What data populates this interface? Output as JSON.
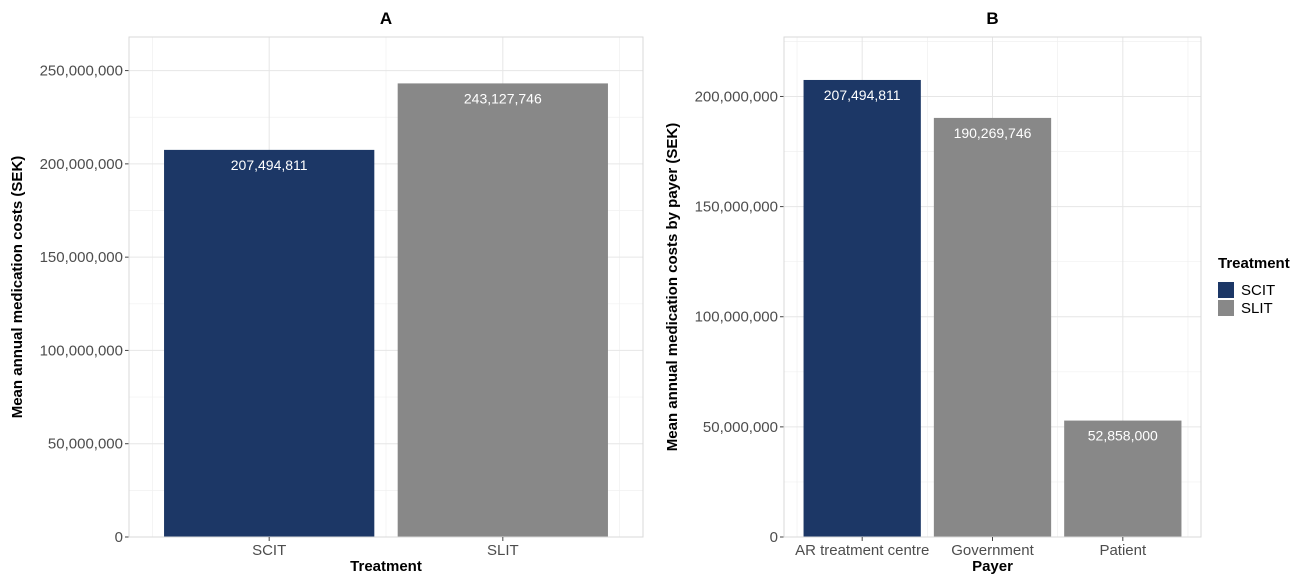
{
  "chart_data": [
    {
      "type": "bar",
      "title": "A",
      "xlabel": "Treatment",
      "ylabel": "Mean annual medication costs (SEK)",
      "categories": [
        "SCIT",
        "SLIT"
      ],
      "values": [
        207494811,
        243127746
      ],
      "bar_treatment": [
        "SCIT",
        "SLIT"
      ],
      "data_labels": [
        "207,494,811",
        "243,127,746"
      ],
      "ylim": [
        0,
        268000000
      ],
      "y_ticks": [
        0,
        50000000,
        100000000,
        150000000,
        200000000,
        250000000
      ],
      "y_tick_labels": [
        "0",
        "50,000,000",
        "100,000,000",
        "150,000,000",
        "200,000,000",
        "250,000,000"
      ],
      "grid": true
    },
    {
      "type": "bar",
      "title": "B",
      "xlabel": "Payer",
      "ylabel": "Mean annual medication costs by payer (SEK)",
      "categories": [
        "AR treatment centre",
        "Government",
        "Patient"
      ],
      "values": [
        207494811,
        190269746,
        52858000
      ],
      "bar_treatment": [
        "SCIT",
        "SLIT",
        "SLIT"
      ],
      "data_labels": [
        "207,494,811",
        "190,269,746",
        "52,858,000"
      ],
      "ylim": [
        0,
        227000000
      ],
      "y_ticks": [
        0,
        50000000,
        100000000,
        150000000,
        200000000
      ],
      "y_tick_labels": [
        "0",
        "50,000,000",
        "100,000,000",
        "150,000,000",
        "200,000,000"
      ],
      "grid": true
    }
  ],
  "legend": {
    "title": "Treatment",
    "placement": "right",
    "items": [
      {
        "label": "SCIT",
        "color": "#1c3766"
      },
      {
        "label": "SLIT",
        "color": "#888888"
      }
    ]
  },
  "colors": {
    "SCIT": "#1c3766",
    "SLIT": "#888888"
  }
}
